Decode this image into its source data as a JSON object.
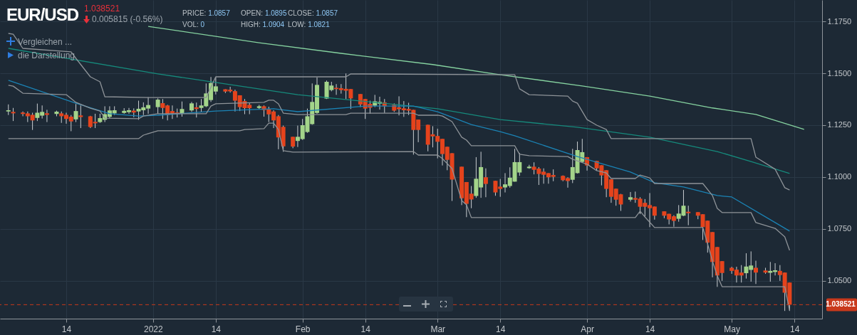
{
  "chart_data": {
    "type": "candlestick",
    "title": "EUR/USD",
    "annotations": [
      "1.038521",
      "0.005815 (-0.56%)",
      "PRICE: 1.0857",
      "OPEN: 1.0895",
      "CLOSE: 1.0857",
      "VOL: 0",
      "HIGH: 1.0904",
      "LOW: 1.0821",
      "Vergleichen ...",
      "die Darstellung"
    ],
    "x": [
      "2021-12-02",
      "2021-12-03",
      "2021-12-05",
      "2021-12-06",
      "2021-12-07",
      "2021-12-08",
      "2021-12-09",
      "2021-12-10",
      "2021-12-12",
      "2021-12-13",
      "2021-12-14",
      "2021-12-15",
      "2021-12-16",
      "2021-12-17",
      "2021-12-19",
      "2021-12-20",
      "2021-12-21",
      "2021-12-22",
      "2021-12-23",
      "2021-12-24",
      "2021-12-26",
      "2021-12-27",
      "2021-12-28",
      "2021-12-29",
      "2021-12-30",
      "2021-12-31",
      "2022-01-02",
      "2022-01-03",
      "2022-01-04",
      "2022-01-05",
      "2022-01-06",
      "2022-01-07",
      "2022-01-09",
      "2022-01-10",
      "2022-01-11",
      "2022-01-12",
      "2022-01-13",
      "2022-01-14",
      "2022-01-16",
      "2022-01-17",
      "2022-01-18",
      "2022-01-19",
      "2022-01-20",
      "2022-01-21",
      "2022-01-23",
      "2022-01-24",
      "2022-01-25",
      "2022-01-26",
      "2022-01-27",
      "2022-01-28",
      "2022-01-30",
      "2022-01-31",
      "2022-02-01",
      "2022-02-02",
      "2022-02-03",
      "2022-02-04",
      "2022-02-06",
      "2022-02-07",
      "2022-02-08",
      "2022-02-09",
      "2022-02-10",
      "2022-02-11",
      "2022-02-13",
      "2022-02-14",
      "2022-02-15",
      "2022-02-16",
      "2022-02-17",
      "2022-02-18",
      "2022-02-20",
      "2022-02-21",
      "2022-02-22",
      "2022-02-23",
      "2022-02-24",
      "2022-02-25",
      "2022-02-27",
      "2022-02-28",
      "2022-03-01",
      "2022-03-02",
      "2022-03-03",
      "2022-03-04",
      "2022-03-06",
      "2022-03-07",
      "2022-03-08",
      "2022-03-09",
      "2022-03-10",
      "2022-03-11",
      "2022-03-13",
      "2022-03-14",
      "2022-03-15",
      "2022-03-16",
      "2022-03-17",
      "2022-03-18",
      "2022-03-20",
      "2022-03-21",
      "2022-03-22",
      "2022-03-23",
      "2022-03-24",
      "2022-03-25",
      "2022-03-27",
      "2022-03-28",
      "2022-03-29",
      "2022-03-30",
      "2022-03-31",
      "2022-04-01",
      "2022-04-03",
      "2022-04-04",
      "2022-04-05",
      "2022-04-06",
      "2022-04-07",
      "2022-04-08",
      "2022-04-10",
      "2022-04-11",
      "2022-04-12",
      "2022-04-13",
      "2022-04-14",
      "2022-04-15",
      "2022-04-17",
      "2022-04-18",
      "2022-04-19",
      "2022-04-20",
      "2022-04-21",
      "2022-04-22",
      "2022-04-24",
      "2022-04-25",
      "2022-04-26",
      "2022-04-27",
      "2022-04-28",
      "2022-04-29",
      "2022-05-01",
      "2022-05-02",
      "2022-05-03",
      "2022-05-04",
      "2022-05-05",
      "2022-05-06",
      "2022-05-08",
      "2022-05-09",
      "2022-05-10",
      "2022-05-11",
      "2022-05-12",
      "2022-05-13"
    ],
    "ohlc": [
      [
        1.1316,
        1.135,
        1.1299,
        1.1322
      ],
      [
        1.1314,
        1.1333,
        1.127,
        1.1307
      ],
      [
        1.1311,
        1.1316,
        1.1293,
        1.1304
      ],
      [
        1.1307,
        1.1316,
        1.1265,
        1.1293
      ],
      [
        1.13,
        1.131,
        1.1227,
        1.1273
      ],
      [
        1.1285,
        1.1354,
        1.127,
        1.131
      ],
      [
        1.1296,
        1.1345,
        1.1282,
        1.1314
      ],
      [
        1.1307,
        1.1324,
        1.1265,
        1.13
      ],
      [
        1.1304,
        1.132,
        1.1293,
        1.1315
      ],
      [
        1.1307,
        1.1316,
        1.1261,
        1.1293
      ],
      [
        1.13,
        1.131,
        1.1257,
        1.128
      ],
      [
        1.1291,
        1.1299,
        1.1221,
        1.1268
      ],
      [
        1.1278,
        1.1352,
        1.1265,
        1.1318
      ],
      [
        1.1297,
        1.1345,
        1.1236,
        1.1289
      ],
      [
        1.1293,
        1.1295,
        1.1236,
        1.1241
      ],
      [
        1.1266,
        1.1305,
        1.1236,
        1.1259
      ],
      [
        1.1265,
        1.1305,
        1.1261,
        1.1284
      ],
      [
        1.1276,
        1.1341,
        1.1265,
        1.1303
      ],
      [
        1.129,
        1.1341,
        1.1284,
        1.1321
      ],
      [
        1.1307,
        1.1341,
        1.1299,
        1.1322
      ],
      [
        1.1309,
        1.1332,
        1.1305,
        1.1319
      ],
      [
        1.1313,
        1.1333,
        1.1305,
        1.1322
      ],
      [
        1.132,
        1.1331,
        1.1288,
        1.1311
      ],
      [
        1.1316,
        1.1368,
        1.1276,
        1.1329
      ],
      [
        1.1322,
        1.136,
        1.1299,
        1.1336
      ],
      [
        1.133,
        1.1385,
        1.1305,
        1.1347
      ],
      [
        1.1337,
        1.1379,
        1.1305,
        1.1373
      ],
      [
        1.1356,
        1.1376,
        1.128,
        1.1333
      ],
      [
        1.1345,
        1.1348,
        1.1273,
        1.1299
      ],
      [
        1.1318,
        1.1345,
        1.128,
        1.1307
      ],
      [
        1.1311,
        1.133,
        1.1287,
        1.1305
      ],
      [
        1.1308,
        1.1364,
        1.1291,
        1.1328
      ],
      [
        1.1321,
        1.1362,
        1.1314,
        1.1355
      ],
      [
        1.1336,
        1.1359,
        1.1287,
        1.1328
      ],
      [
        1.1333,
        1.1376,
        1.1314,
        1.1345
      ],
      [
        1.1341,
        1.1451,
        1.1337,
        1.1403
      ],
      [
        1.1371,
        1.1482,
        1.1362,
        1.1453
      ],
      [
        1.1412,
        1.1482,
        1.1398,
        1.1437
      ],
      [
        1.1423,
        1.1423,
        1.1405,
        1.1412
      ],
      [
        1.1421,
        1.1435,
        1.1407,
        1.1413
      ],
      [
        1.1414,
        1.1421,
        1.1316,
        1.1368
      ],
      [
        1.1394,
        1.1394,
        1.1318,
        1.1337
      ],
      [
        1.1366,
        1.1376,
        1.1303,
        1.1332
      ],
      [
        1.1348,
        1.1356,
        1.1303,
        1.1332
      ],
      [
        1.1333,
        1.1348,
        1.1328,
        1.1341
      ],
      [
        1.1341,
        1.1345,
        1.1291,
        1.1323
      ],
      [
        1.1327,
        1.1339,
        1.1265,
        1.1302
      ],
      [
        1.1316,
        1.1322,
        1.1236,
        1.1273
      ],
      [
        1.1293,
        1.1299,
        1.1134,
        1.1191
      ],
      [
        1.1242,
        1.1248,
        1.1122,
        1.1148
      ],
      [
        1.1194,
        1.1194,
        1.1139,
        1.1147
      ],
      [
        1.1174,
        1.1248,
        1.1145,
        1.1194
      ],
      [
        1.1183,
        1.128,
        1.1179,
        1.125
      ],
      [
        1.1217,
        1.133,
        1.1213,
        1.1293
      ],
      [
        1.1255,
        1.1451,
        1.1252,
        1.1362
      ],
      [
        1.1309,
        1.148,
        1.1305,
        1.1444
      ],
      [
        1.1378,
        1.1465,
        1.1376,
        1.1459
      ],
      [
        1.1419,
        1.1459,
        1.1413,
        1.1441
      ],
      [
        1.143,
        1.1448,
        1.1396,
        1.1424
      ],
      [
        1.1428,
        1.1448,
        1.1402,
        1.1419
      ],
      [
        1.1425,
        1.1499,
        1.1376,
        1.1416
      ],
      [
        1.1424,
        1.1424,
        1.1328,
        1.1379
      ],
      [
        1.14,
        1.14,
        1.1337,
        1.135
      ],
      [
        1.1376,
        1.1376,
        1.128,
        1.133
      ],
      [
        1.1353,
        1.1368,
        1.1305,
        1.1334
      ],
      [
        1.1344,
        1.1396,
        1.1337,
        1.1365
      ],
      [
        1.1353,
        1.1387,
        1.1325,
        1.1362
      ],
      [
        1.136,
        1.1376,
        1.1309,
        1.1341
      ],
      [
        1.1348,
        1.1355,
        1.1314,
        1.132
      ],
      [
        1.1336,
        1.1389,
        1.1297,
        1.1327
      ],
      [
        1.1331,
        1.1366,
        1.129,
        1.1322
      ],
      [
        1.1328,
        1.1358,
        1.1299,
        1.132
      ],
      [
        1.1324,
        1.1324,
        1.1108,
        1.1227
      ],
      [
        1.1277,
        1.1277,
        1.1168,
        1.1227
      ],
      [
        1.1252,
        1.1252,
        1.1124,
        1.1156
      ],
      [
        1.1206,
        1.1245,
        1.1143,
        1.1196
      ],
      [
        1.1198,
        1.1233,
        1.109,
        1.117
      ],
      [
        1.1184,
        1.1184,
        1.1056,
        1.1111
      ],
      [
        1.1146,
        1.1146,
        1.1033,
        1.1083
      ],
      [
        1.1115,
        1.1115,
        1.0885,
        1.0988
      ],
      [
        1.105,
        1.105,
        1.0865,
        1.0898
      ],
      [
        1.0976,
        1.0976,
        1.0807,
        1.0871
      ],
      [
        1.092,
        1.0957,
        1.085,
        1.0892
      ],
      [
        1.0909,
        1.1096,
        1.09,
        1.0992
      ],
      [
        1.095,
        1.1122,
        1.09,
        1.1048
      ],
      [
        1.0999,
        1.1042,
        1.0903,
        1.0967
      ],
      [
        1.0982,
        1.0982,
        1.091,
        1.0926
      ],
      [
        1.0954,
        1.0991,
        1.0905,
        1.0943
      ],
      [
        1.095,
        1.1019,
        1.0926,
        1.0965
      ],
      [
        1.0957,
        1.1047,
        1.0949,
        1.0997
      ],
      [
        1.0978,
        1.1136,
        1.0978,
        1.1072
      ],
      [
        1.1022,
        1.1116,
        1.1006,
        1.1072
      ],
      [
        1.1043,
        1.1059,
        1.104,
        1.105
      ],
      [
        1.105,
        1.1071,
        1.1013,
        1.1035
      ],
      [
        1.1041,
        1.1048,
        1.0962,
        1.1015
      ],
      [
        1.1026,
        1.1042,
        1.0968,
        1.1011
      ],
      [
        1.1019,
        1.1019,
        1.0968,
        1.0999
      ],
      [
        1.101,
        1.1037,
        1.098,
        1.1001
      ],
      [
        1.1006,
        1.1008,
        1.098,
        1.0985
      ],
      [
        1.0995,
        1.0999,
        1.0949,
        1.0981
      ],
      [
        1.0987,
        1.1136,
        1.0971,
        1.1048
      ],
      [
        1.1019,
        1.1171,
        1.1017,
        1.113
      ],
      [
        1.1073,
        1.1184,
        1.1071,
        1.112
      ],
      [
        1.1096,
        1.1096,
        1.1031,
        1.1056
      ],
      [
        1.1078,
        1.1078,
        1.1031,
        1.1042
      ],
      [
        1.1057,
        1.1057,
        1.096,
        1.1008
      ],
      [
        1.1033,
        1.1033,
        1.0903,
        1.0943
      ],
      [
        1.0989,
        1.0989,
        1.0876,
        1.0905
      ],
      [
        1.0944,
        1.0944,
        1.0862,
        1.0891
      ],
      [
        1.0917,
        1.0919,
        1.0837,
        1.0868
      ],
      [
        1.0891,
        1.0928,
        1.0882,
        1.0903
      ],
      [
        1.0899,
        1.093,
        1.0876,
        1.0891
      ],
      [
        1.0896,
        1.0903,
        1.0822,
        1.0857
      ],
      [
        1.0876,
        1.0894,
        1.081,
        1.0857
      ],
      [
        1.0865,
        1.0923,
        1.0759,
        1.085
      ],
      [
        1.0858,
        1.0858,
        1.0795,
        1.0814
      ],
      [
        1.0835,
        1.0835,
        1.0802,
        1.0814
      ],
      [
        1.0823,
        1.0823,
        1.0772,
        1.0796
      ],
      [
        1.0811,
        1.0816,
        1.0761,
        1.0789
      ],
      [
        1.0799,
        1.0865,
        1.0785,
        1.0824
      ],
      [
        1.0814,
        1.0938,
        1.0812,
        1.0862
      ],
      [
        1.0833,
        1.0862,
        1.0768,
        1.0826
      ],
      [
        1.0831,
        1.0831,
        1.0797,
        1.0814
      ],
      [
        1.0821,
        1.0821,
        1.0697,
        1.0759
      ],
      [
        1.079,
        1.079,
        1.0636,
        1.0684
      ],
      [
        1.0735,
        1.0735,
        1.0517,
        1.0591
      ],
      [
        1.0663,
        1.0663,
        1.0471,
        1.0526
      ],
      [
        1.0595,
        1.0595,
        1.05,
        1.0538
      ],
      [
        1.0563,
        1.0568,
        1.0534,
        1.0548
      ],
      [
        1.0554,
        1.0568,
        1.0492,
        1.0526
      ],
      [
        1.054,
        1.0576,
        1.0492,
        1.0526
      ],
      [
        1.0537,
        1.0633,
        1.0511,
        1.0569
      ],
      [
        1.0553,
        1.0642,
        1.0496,
        1.0574
      ],
      [
        1.0563,
        1.0597,
        1.0485,
        1.054
      ],
      [
        1.055,
        1.0563,
        1.0534,
        1.054
      ],
      [
        1.0539,
        1.0591,
        1.0496,
        1.0548
      ],
      [
        1.0543,
        1.0585,
        1.0526,
        1.0551
      ],
      [
        1.0548,
        1.0576,
        1.05,
        1.0528
      ],
      [
        1.054,
        1.054,
        1.0355,
        1.0443
      ],
      [
        1.0492,
        1.0492,
        1.0355,
        1.0385
      ]
    ],
    "colors": [
      "#a3d48a",
      "#e5431c",
      "#e5431c",
      "#e5431c",
      "#e5431c",
      "#a3d48a",
      "#a3d48a",
      "#e5431c",
      "#a3d48a",
      "#e5431c",
      "#e5431c",
      "#e5431c",
      "#a3d48a",
      "#e5431c",
      "#e5431c",
      "#e5431c",
      "#a3d48a",
      "#a3d48a",
      "#a3d48a",
      "#a3d48a",
      "#a3d48a",
      "#a3d48a",
      "#e5431c",
      "#a3d48a",
      "#a3d48a",
      "#a3d48a",
      "#a3d48a",
      "#e5431c",
      "#e5431c",
      "#e5431c",
      "#e5431c",
      "#a3d48a",
      "#a3d48a",
      "#e5431c",
      "#a3d48a",
      "#a3d48a",
      "#a3d48a",
      "#a3d48a",
      "#e5431c",
      "#e5431c",
      "#e5431c",
      "#e5431c",
      "#e5431c",
      "#e5431c",
      "#a3d48a",
      "#e5431c",
      "#e5431c",
      "#e5431c",
      "#e5431c",
      "#e5431c",
      "#e5431c",
      "#a3d48a",
      "#a3d48a",
      "#a3d48a",
      "#a3d48a",
      "#a3d48a",
      "#a3d48a",
      "#a3d48a",
      "#e5431c",
      "#e5431c",
      "#e5431c",
      "#e5431c",
      "#e5431c",
      "#e5431c",
      "#e5431c",
      "#a3d48a",
      "#a3d48a",
      "#e5431c",
      "#e5431c",
      "#e5431c",
      "#e5431c",
      "#e5431c",
      "#e5431c",
      "#e5431c",
      "#e5431c",
      "#e5431c",
      "#e5431c",
      "#e5431c",
      "#e5431c",
      "#e5431c",
      "#e5431c",
      "#e5431c",
      "#e5431c",
      "#a3d48a",
      "#a3d48a",
      "#e5431c",
      "#e5431c",
      "#e5431c",
      "#a3d48a",
      "#a3d48a",
      "#a3d48a",
      "#a3d48a",
      "#a3d48a",
      "#e5431c",
      "#e5431c",
      "#e5431c",
      "#e5431c",
      "#e5431c",
      "#e5431c",
      "#e5431c",
      "#a3d48a",
      "#a3d48a",
      "#a3d48a",
      "#e5431c",
      "#e5431c",
      "#e5431c",
      "#e5431c",
      "#e5431c",
      "#e5431c",
      "#e5431c",
      "#a3d48a",
      "#e5431c",
      "#e5431c",
      "#e5431c",
      "#e5431c",
      "#e5431c",
      "#e5431c",
      "#e5431c",
      "#e5431c",
      "#a3d48a",
      "#a3d48a",
      "#e5431c",
      "#e5431c",
      "#e5431c",
      "#e5431c",
      "#e5431c",
      "#e5431c",
      "#e5431c",
      "#e5431c",
      "#e5431c",
      "#e5431c",
      "#a3d48a",
      "#a3d48a",
      "#e5431c",
      "#e5431c",
      "#a3d48a",
      "#a3d48a",
      "#e5431c",
      "#e5431c",
      "#e5431c"
    ],
    "color": "#c9cdd1",
    "series": [
      {
        "type": "line",
        "color": "#86d3a0",
        "x": [
          "2021-12-31",
          "2022-01-23",
          "2022-02-09",
          "2022-02-28",
          "2022-03-14",
          "2022-03-31",
          "2022-04-14",
          "2022-04-27",
          "2022-05-06",
          "2022-05-16"
        ],
        "values": [
          1.1726,
          1.1647,
          1.1596,
          1.1542,
          1.1493,
          1.1439,
          1.139,
          1.1333,
          1.1302,
          1.123
        ]
      },
      {
        "type": "line",
        "color": "#168a7c",
        "x": [
          "2021-12-02",
          "2022-01-02",
          "2022-01-31",
          "2022-03-01",
          "2022-03-14",
          "2022-03-30",
          "2022-04-14",
          "2022-04-28",
          "2022-05-05",
          "2022-05-13"
        ],
        "values": [
          1.162,
          1.1497,
          1.1397,
          1.1329,
          1.1277,
          1.124,
          1.1192,
          1.1123,
          1.1075,
          1.1017
        ]
      },
      {
        "type": "line",
        "color": "#1b83b5",
        "x": [
          "2021-12-02",
          "2021-12-16",
          "2021-12-23",
          "2021-12-29",
          "2022-01-02",
          "2022-01-14",
          "2022-01-26",
          "2022-01-31",
          "2022-02-14",
          "2022-02-24",
          "2022-03-01",
          "2022-03-08",
          "2022-03-14",
          "2022-03-17",
          "2022-03-30",
          "2022-04-10",
          "2022-04-15",
          "2022-04-21",
          "2022-04-28",
          "2022-05-01",
          "2022-05-10",
          "2022-05-13"
        ],
        "values": [
          1.1466,
          1.1356,
          1.1305,
          1.1294,
          1.1298,
          1.1318,
          1.1329,
          1.1315,
          1.1342,
          1.1342,
          1.1315,
          1.1253,
          1.1219,
          1.1199,
          1.1099,
          1.1024,
          1.0973,
          1.0952,
          1.0911,
          1.0904,
          1.0781,
          1.074
        ]
      },
      {
        "type": "line",
        "color": "#8e9398",
        "x": [
          "2021-12-02",
          "2021-12-03",
          "2021-12-05",
          "2021-12-15",
          "2021-12-16",
          "2021-12-19",
          "2021-12-21",
          "2021-12-22",
          "2021-12-31",
          "2022-01-12",
          "2022-01-14",
          "2022-02-10",
          "2022-02-11",
          "2022-03-17",
          "2022-03-18",
          "2022-03-20",
          "2022-03-28",
          "2022-03-29",
          "2022-03-30",
          "2022-04-01",
          "2022-04-03",
          "2022-04-05",
          "2022-04-06",
          "2022-05-05",
          "2022-05-06",
          "2022-05-10",
          "2022-05-12",
          "2022-05-13"
        ],
        "values": [
          1.1692,
          1.1688,
          1.162,
          1.1603,
          1.1572,
          1.1483,
          1.1459,
          1.1387,
          1.1383,
          1.1383,
          1.1483,
          1.1483,
          1.1497,
          1.1493,
          1.1425,
          1.1397,
          1.139,
          1.1366,
          1.1356,
          1.1277,
          1.125,
          1.1229,
          1.1185,
          1.1185,
          1.1096,
          1.1038,
          1.0949,
          1.0938
        ]
      },
      {
        "type": "line",
        "color": "#8e9398",
        "x": [
          "2021-12-02",
          "2021-12-03",
          "2021-12-05",
          "2021-12-14",
          "2021-12-16",
          "2021-12-19",
          "2021-12-21",
          "2021-12-22",
          "2021-12-29",
          "2021-12-30",
          "2022-01-02",
          "2022-01-12",
          "2022-01-13",
          "2022-01-14",
          "2022-01-24",
          "2022-01-25",
          "2022-01-26",
          "2022-01-27",
          "2022-01-28",
          "2022-01-31",
          "2022-02-10",
          "2022-02-11",
          "2022-02-24",
          "2022-02-25",
          "2022-03-01",
          "2022-03-02",
          "2022-03-04",
          "2022-03-06",
          "2022-03-07",
          "2022-03-08",
          "2022-03-17",
          "2022-03-18",
          "2022-03-20",
          "2022-03-28",
          "2022-03-29",
          "2022-04-01",
          "2022-04-03",
          "2022-04-05",
          "2022-04-06",
          "2022-04-11",
          "2022-04-12",
          "2022-04-14",
          "2022-04-15",
          "2022-04-25",
          "2022-04-27",
          "2022-04-28",
          "2022-04-29",
          "2022-05-05",
          "2022-05-06",
          "2022-05-10",
          "2022-05-12",
          "2022-05-13"
        ],
        "values": [
          1.1442,
          1.1438,
          1.1404,
          1.1397,
          1.136,
          1.1332,
          1.1318,
          1.1284,
          1.1281,
          1.1294,
          1.1305,
          1.1305,
          1.1342,
          1.1353,
          1.136,
          1.137,
          1.137,
          1.1353,
          1.1308,
          1.1301,
          1.1301,
          1.1308,
          1.1308,
          1.1298,
          1.1298,
          1.1294,
          1.1267,
          1.1192,
          1.1178,
          1.1151,
          1.1151,
          1.111,
          1.1103,
          1.1099,
          1.1086,
          1.1062,
          1.1031,
          1.102,
          1.0993,
          1.0993,
          1.101,
          1.0996,
          1.0969,
          1.0969,
          1.0911,
          1.0849,
          1.0829,
          1.0829,
          1.0781,
          1.0753,
          1.0712,
          1.0647
        ]
      },
      {
        "type": "line",
        "color": "#8e9398",
        "x": [
          "2021-12-02",
          "2021-12-29",
          "2021-12-30",
          "2021-12-31",
          "2022-01-02",
          "2022-01-19",
          "2022-01-20",
          "2022-01-24",
          "2022-01-25",
          "2022-01-26",
          "2022-01-27",
          "2022-01-28",
          "2022-01-30",
          "2022-02-24",
          "2022-02-25",
          "2022-03-01",
          "2022-03-02",
          "2022-03-04",
          "2022-03-06",
          "2022-03-07",
          "2022-03-08",
          "2022-04-11",
          "2022-04-12",
          "2022-04-13",
          "2022-04-15",
          "2022-04-25",
          "2022-04-26",
          "2022-04-27",
          "2022-04-28",
          "2022-04-29",
          "2022-05-12",
          "2022-05-13"
        ],
        "values": [
          1.1185,
          1.1185,
          1.1202,
          1.1209,
          1.1223,
          1.1223,
          1.1229,
          1.1233,
          1.126,
          1.126,
          1.1229,
          1.1127,
          1.112,
          1.1123,
          1.1106,
          1.1106,
          1.1089,
          1.1041,
          1.0887,
          1.0866,
          1.0805,
          1.0805,
          1.0836,
          1.0808,
          1.0757,
          1.0757,
          1.0678,
          1.0596,
          1.0524,
          1.0472,
          1.0472,
          1.0356
        ]
      }
    ],
    "xlim": [
      "2021-12-01",
      "2022-05-19"
    ],
    "xticks": [
      {
        "value": "2021-12-14",
        "label": "14"
      },
      {
        "value": "2022-01-01",
        "label": "2022"
      },
      {
        "value": "2022-01-14",
        "label": "14"
      },
      {
        "value": "2022-02-01",
        "label": "Feb"
      },
      {
        "value": "2022-02-14",
        "label": "14"
      },
      {
        "value": "2022-03-01",
        "label": "Mar"
      },
      {
        "value": "2022-03-14",
        "label": "14"
      },
      {
        "value": "2022-04-01",
        "label": "Apr"
      },
      {
        "value": "2022-04-14",
        "label": "14"
      },
      {
        "value": "2022-05-01",
        "label": "May"
      },
      {
        "value": "2022-05-14",
        "label": "14"
      }
    ],
    "ylim": [
      1.0318,
      1.1853
    ],
    "yticks": [
      {
        "value": 1.05,
        "label": "1.0500"
      },
      {
        "value": 1.075,
        "label": "1.0750"
      },
      {
        "value": 1.1,
        "label": "1.1000"
      },
      {
        "value": 1.125,
        "label": "1.1250"
      },
      {
        "value": 1.15,
        "label": "1.1500"
      },
      {
        "value": 1.175,
        "label": "1.1750"
      }
    ],
    "ref_lines": [
      {
        "axis": "y",
        "value": 1.038521,
        "label": "1.038521",
        "color": "#c8391c",
        "line_style": "dashed"
      }
    ],
    "grid": true
  }
}
